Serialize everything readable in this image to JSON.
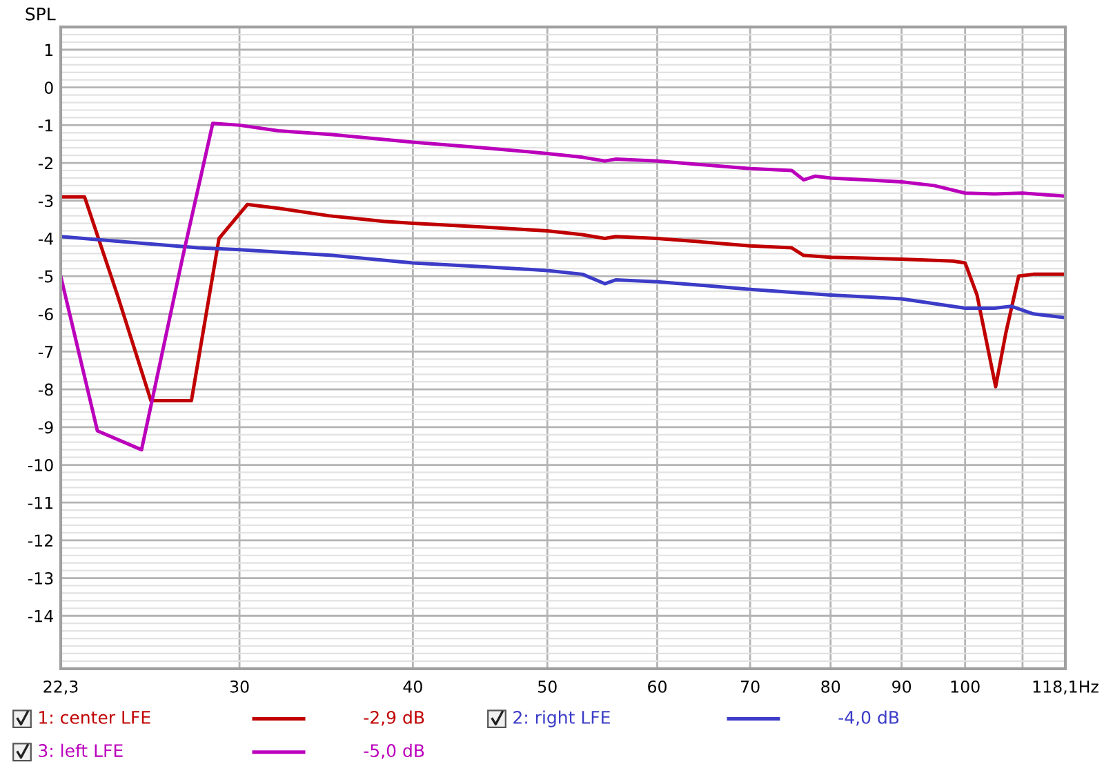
{
  "chart_data": {
    "type": "line",
    "ylabel": "SPL",
    "log": "x",
    "xlim": [
      22.3,
      118.1
    ],
    "ylim": [
      -15.4,
      1.6
    ],
    "xticks": [
      {
        "value": 22.3,
        "label": "22,3"
      },
      30,
      40,
      50,
      60,
      70,
      80,
      90,
      100,
      {
        "value": 110,
        "label": null
      },
      {
        "value": 118.1,
        "label": "118,1Hz"
      }
    ],
    "yticks": [
      1,
      0,
      -1,
      -2,
      -3,
      -4,
      -5,
      -6,
      -7,
      -8,
      -9,
      -10,
      -11,
      -12,
      -13,
      -14
    ],
    "grid": true,
    "legend": "bottom",
    "marker": "none",
    "line_style": "solid",
    "series": [
      {
        "name": "1: center LFE",
        "color": "#c00000",
        "x": [
          22.3,
          23.2,
          24.5,
          25.9,
          27.7,
          29.0,
          30.4,
          32,
          34.8,
          38.1,
          40,
          45,
          50,
          53,
          55,
          56,
          60,
          65,
          70,
          75,
          76.5,
          80,
          90,
          98,
          100,
          102,
          105.2,
          107,
          109.3,
          112,
          118.1
        ],
        "values": [
          -2.9,
          -2.9,
          -5.5,
          -8.3,
          -8.3,
          -4.0,
          -3.1,
          -3.2,
          -3.4,
          -3.55,
          -3.6,
          -3.7,
          -3.8,
          -3.9,
          -4.0,
          -3.95,
          -4.0,
          -4.1,
          -4.2,
          -4.25,
          -4.45,
          -4.5,
          -4.55,
          -4.6,
          -4.65,
          -5.5,
          -7.93,
          -6.5,
          -5.0,
          -4.95,
          -4.95
        ]
      },
      {
        "name": "2: right LFE",
        "color": "#3c3cc8",
        "x": [
          22.3,
          25,
          28,
          30,
          35,
          40,
          45,
          50,
          53,
          55,
          56,
          60,
          65,
          70,
          80,
          90,
          100,
          105,
          108,
          112,
          118.1
        ],
        "values": [
          -3.95,
          -4.1,
          -4.25,
          -4.3,
          -4.45,
          -4.65,
          -4.75,
          -4.85,
          -4.95,
          -5.2,
          -5.1,
          -5.15,
          -5.25,
          -5.35,
          -5.5,
          -5.6,
          -5.85,
          -5.85,
          -5.8,
          -6.0,
          -6.1
        ]
      },
      {
        "name": "3: left LFE",
        "color": "#bb00bb",
        "x": [
          22.3,
          23.7,
          25.5,
          27.3,
          28.7,
          30,
          32,
          35,
          40,
          45,
          50,
          53,
          55,
          56,
          60,
          70,
          75,
          76.5,
          78,
          80,
          90,
          95,
          100,
          105,
          110,
          118.1
        ],
        "values": [
          -5.0,
          -9.1,
          -9.6,
          -4.5,
          -0.95,
          -1.0,
          -1.15,
          -1.25,
          -1.45,
          -1.6,
          -1.75,
          -1.85,
          -1.95,
          -1.9,
          -1.95,
          -2.15,
          -2.2,
          -2.45,
          -2.35,
          -2.4,
          -2.5,
          -2.6,
          -2.8,
          -2.82,
          -2.8,
          -2.88
        ]
      }
    ],
    "annotations": [
      "-2,9 dB",
      "-4,0 dB",
      "-5,0 dB"
    ]
  }
}
